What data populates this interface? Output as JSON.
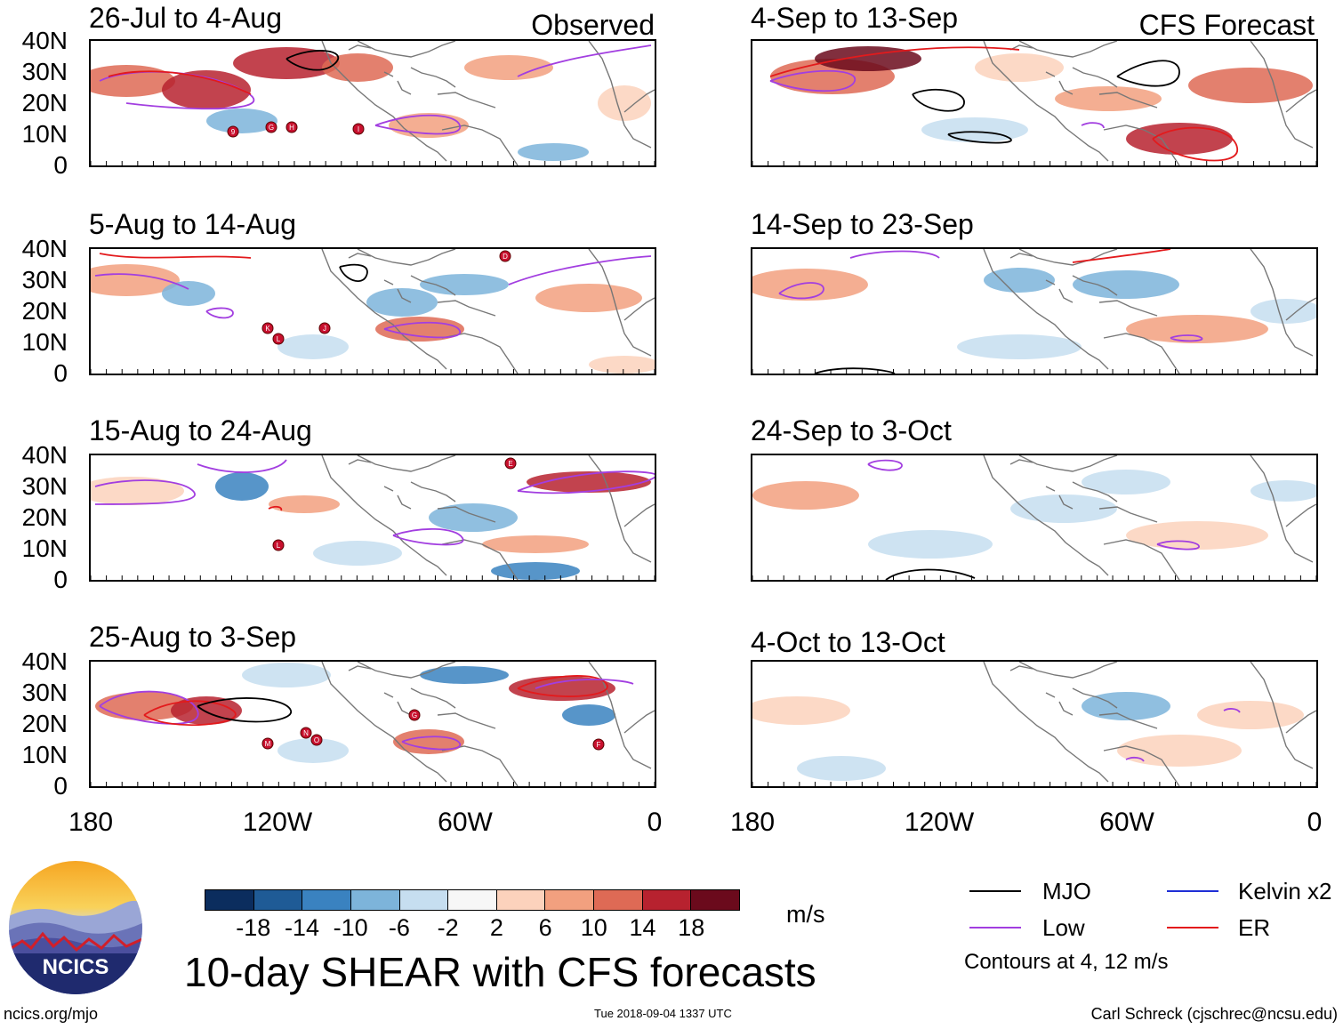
{
  "columns": [
    {
      "key": "observed",
      "label": "Observed"
    },
    {
      "key": "forecast",
      "label": "CFS Forecast"
    }
  ],
  "panels": [
    {
      "title": "26-Jul to 4-Aug",
      "storms": [
        "9",
        "G",
        "H",
        "I"
      ]
    },
    {
      "title": "5-Aug to 14-Aug",
      "storms": [
        "D",
        "K",
        "L",
        "J"
      ]
    },
    {
      "title": "15-Aug to 24-Aug",
      "storms": [
        "E",
        "L"
      ]
    },
    {
      "title": "25-Aug to 3-Sep",
      "storms": [
        "M",
        "N",
        "O",
        "G",
        "F"
      ]
    },
    {
      "title": "4-Sep to 13-Sep",
      "storms": []
    },
    {
      "title": "14-Sep to 23-Sep",
      "storms": []
    },
    {
      "title": "24-Sep to 3-Oct",
      "storms": []
    },
    {
      "title": "4-Oct to 13-Oct",
      "storms": []
    }
  ],
  "lat_labels": [
    "40N",
    "30N",
    "20N",
    "10N",
    "0"
  ],
  "lon_labels": [
    "180",
    "120W",
    "60W",
    "0"
  ],
  "colorbar": {
    "labels": [
      "-18",
      "-14",
      "-10",
      "-6",
      "-2",
      "2",
      "6",
      "10",
      "14",
      "18"
    ],
    "colors": [
      "#0b2d5e",
      "#1f5b96",
      "#3a82c0",
      "#7db4da",
      "#c6def0",
      "#f7f7f7",
      "#fcd2bc",
      "#f2a07f",
      "#de6a55",
      "#b7222f",
      "#6b0a1c"
    ],
    "units": "m/s"
  },
  "title": "10-day SHEAR with CFS forecasts",
  "legend": {
    "items": [
      {
        "label": "MJO",
        "color": "#000000"
      },
      {
        "label": "Kelvin x2",
        "color": "#1f2fd6"
      },
      {
        "label": "Low",
        "color": "#a23ee0"
      },
      {
        "label": "ER",
        "color": "#e31a1c"
      }
    ],
    "note": "Contours at 4, 12 m/s"
  },
  "logo_text": "NCICS",
  "footer": {
    "left": "ncics.org/mjo",
    "center": "Tue 2018-09-04 1337 UTC",
    "right": "Carl Schreck (cjschrec@ncsu.edu)"
  }
}
